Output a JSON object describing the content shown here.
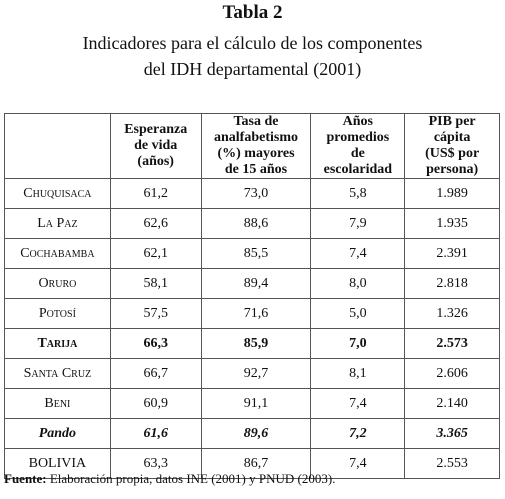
{
  "header": {
    "title": "Tabla 2",
    "subtitle": [
      "Indicadores para el cálculo de los componentes",
      "del IDH departamental (2001)"
    ]
  },
  "table": {
    "columns": [
      [],
      [
        "Esperanza",
        "de vida",
        "(años)"
      ],
      [
        "Tasa de",
        "analfabetismo",
        "(%) mayores",
        "de 15 años"
      ],
      [
        "Años",
        "promedios",
        "de",
        "escolaridad"
      ],
      [
        "PIB per",
        "cápita",
        "(US$ por",
        "persona)"
      ]
    ],
    "rows": [
      [
        "Chuquisaca",
        "61,2",
        "73,0",
        "5,8",
        "1.989"
      ],
      [
        "La Paz",
        "62,6",
        "88,6",
        "7,9",
        "1.935"
      ],
      [
        "Cochabamba",
        "62,1",
        "85,5",
        "7,4",
        "2.391"
      ],
      [
        "Oruro",
        "58,1",
        "89,4",
        "8,0",
        "2.818"
      ],
      [
        "Potosí",
        "57,5",
        "71,6",
        "5,0",
        "1.326"
      ],
      [
        "Tarija",
        "66,3",
        "85,9",
        "7,0",
        "2.573"
      ],
      [
        "Santa Cruz",
        "66,7",
        "92,7",
        "8,1",
        "2.606"
      ],
      [
        "Beni",
        "60,9",
        "91,1",
        "7,4",
        "2.140"
      ],
      [
        "Pando",
        "61,6",
        "89,6",
        "7,2",
        "3.365"
      ],
      [
        "BOLIVIA",
        "63,3",
        "86,7",
        "7,4",
        "2.553"
      ]
    ]
  },
  "footer": {
    "label": "Fuente:",
    "text": "Elaboración propia, datos INE (2001) y PNUD (2003)."
  }
}
